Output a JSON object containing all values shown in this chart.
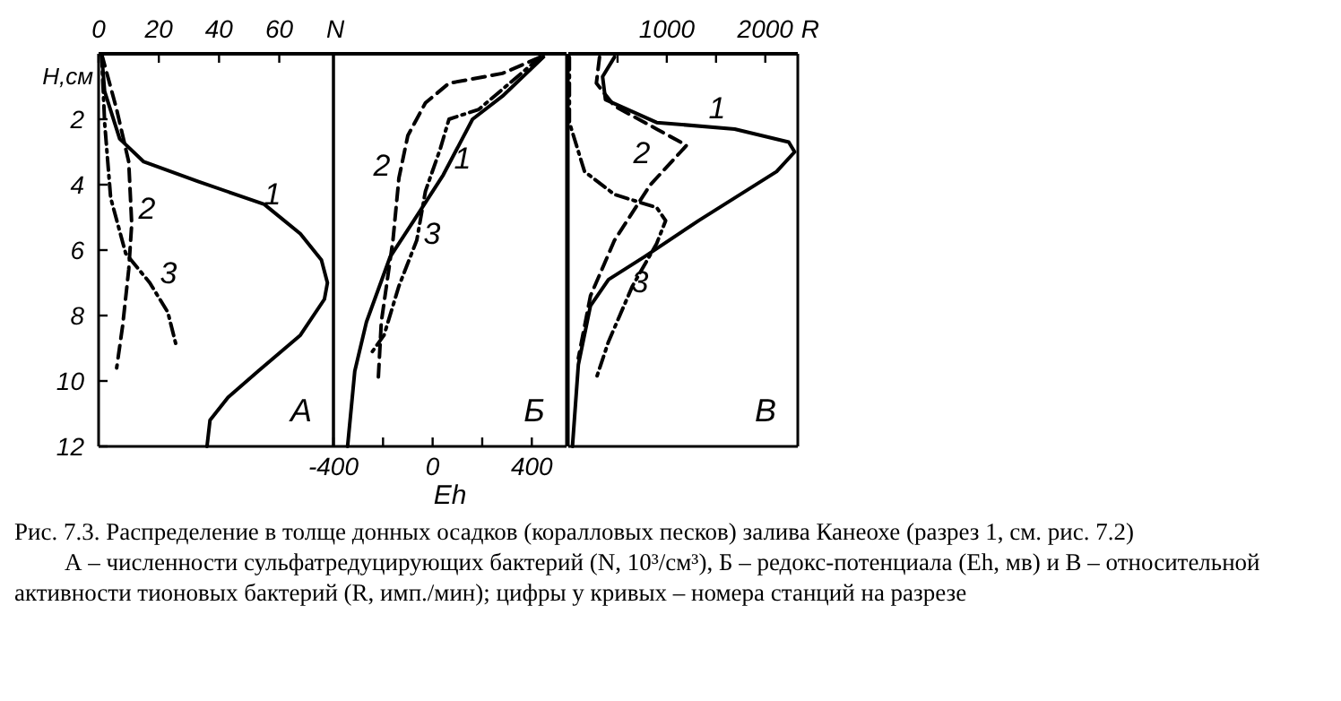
{
  "chart_data": [
    {
      "type": "line",
      "title": "А",
      "xlabel": "N",
      "ylabel": "Н,см",
      "xlim": [
        0,
        78
      ],
      "xticks": [
        0,
        20,
        40,
        60
      ],
      "ylim": [
        12,
        0
      ],
      "yticks": [
        2,
        4,
        6,
        8,
        10,
        12
      ],
      "series": [
        {
          "name": "1",
          "color": "#000000",
          "line_style": "solid",
          "x": [
            1,
            2,
            7,
            15,
            33,
            55,
            67,
            74,
            76,
            75,
            67,
            53,
            43,
            37,
            36
          ],
          "values": [
            0,
            1.15,
            2.6,
            3.3,
            3.9,
            4.6,
            5.5,
            6.3,
            7,
            7.5,
            8.6,
            9.7,
            10.5,
            11.2,
            12
          ]
        },
        {
          "name": "2",
          "color": "#000000",
          "line_style": "dashed",
          "x": [
            1,
            6,
            10,
            11,
            10,
            8,
            6
          ],
          "values": [
            0,
            1.7,
            3.3,
            5.2,
            6.6,
            8.3,
            9.6
          ]
        },
        {
          "name": "3",
          "color": "#000000",
          "line_style": "dotted",
          "x": [
            1,
            2,
            4,
            9,
            17,
            23,
            26
          ],
          "values": [
            0,
            2.1,
            4.4,
            6.1,
            7,
            7.9,
            9
          ]
        }
      ],
      "annotations": [
        "Рис. 7.3. Распределение в толще донных осадков (коралловых песков) залива Канеохе (разрез 1, см. рис. 7.2)",
        "А – численности сульфатредуцирующих бактерий (N, 10³/см³), Б – редокс-потенциала (Eh, мв) и В – относительной активности тионовых бактерий (R, имп./мин); цифры у кривых – номера станций на разрезе"
      ]
    },
    {
      "type": "line",
      "title": "Б",
      "xlabel": "Eh",
      "xlim": [
        -400,
        540
      ],
      "xticks": [
        -400,
        {
          "value": -200,
          "label": null
        },
        0,
        {
          "value": 200,
          "label": null
        },
        400
      ],
      "ylim": [
        12,
        0
      ],
      "tick_labels": "x",
      "series": [
        {
          "name": "1",
          "color": "#000000",
          "line_style": "solid",
          "x": [
            447,
            281,
            161,
            43,
            -76,
            -171,
            -267,
            -314,
            -343
          ],
          "values": [
            0.1,
            1.3,
            2,
            3.7,
            5.1,
            6.2,
            8.2,
            9.7,
            12
          ]
        },
        {
          "name": "2",
          "color": "#000000",
          "line_style": "dashed",
          "x": [
            435,
            281,
            66,
            -29,
            -100,
            -136,
            -160,
            -207,
            -219
          ],
          "values": [
            0.1,
            0.6,
            0.9,
            1.5,
            2.5,
            3.8,
            5.7,
            8.2,
            9.9
          ]
        },
        {
          "name": "3",
          "color": "#000000",
          "line_style": "dotted",
          "x": [
            435,
            186,
            66,
            31,
            -29,
            -64,
            -136,
            -196,
            -243
          ],
          "values": [
            0.1,
            1.7,
            2,
            2.9,
            4.2,
            5.7,
            7.1,
            8.6,
            9.1
          ]
        }
      ]
    },
    {
      "type": "line",
      "title": "В",
      "xlabel": "R",
      "xlim": [
        0,
        2330
      ],
      "xticks": [
        {
          "value": 500,
          "label": null
        },
        1000,
        {
          "value": 1500,
          "label": null
        },
        2000
      ],
      "ylim": [
        12,
        0
      ],
      "tick_labels": "x",
      "series": [
        {
          "name": "1",
          "color": "#000000",
          "line_style": "solid",
          "x": [
            469,
            348,
            377,
            897,
            1689,
            2238,
            2298,
            2115,
            1323,
            774,
            408,
            225,
            102,
            42
          ],
          "values": [
            0.1,
            0.7,
            1.4,
            2.1,
            2.3,
            2.7,
            3,
            3.6,
            5.1,
            6.2,
            6.9,
            7.7,
            9.5,
            12
          ]
        },
        {
          "name": "2",
          "color": "#000000",
          "line_style": "dashed",
          "x": [
            317,
            285,
            469,
            897,
            1200,
            1140,
            834,
            469,
            225,
            102
          ],
          "values": [
            0.1,
            0.9,
            1.6,
            2.3,
            2.8,
            3,
            4,
            5.7,
            7.4,
            9.3
          ]
        },
        {
          "name": "3",
          "color": "#000000",
          "line_style": "dotted",
          "x": [
            11,
            11,
            165,
            469,
            897,
            988,
            897,
            651,
            408,
            286
          ],
          "values": [
            0.1,
            2.1,
            3.6,
            4.3,
            4.7,
            5.1,
            5.8,
            7.1,
            8.8,
            9.9
          ]
        }
      ]
    }
  ]
}
